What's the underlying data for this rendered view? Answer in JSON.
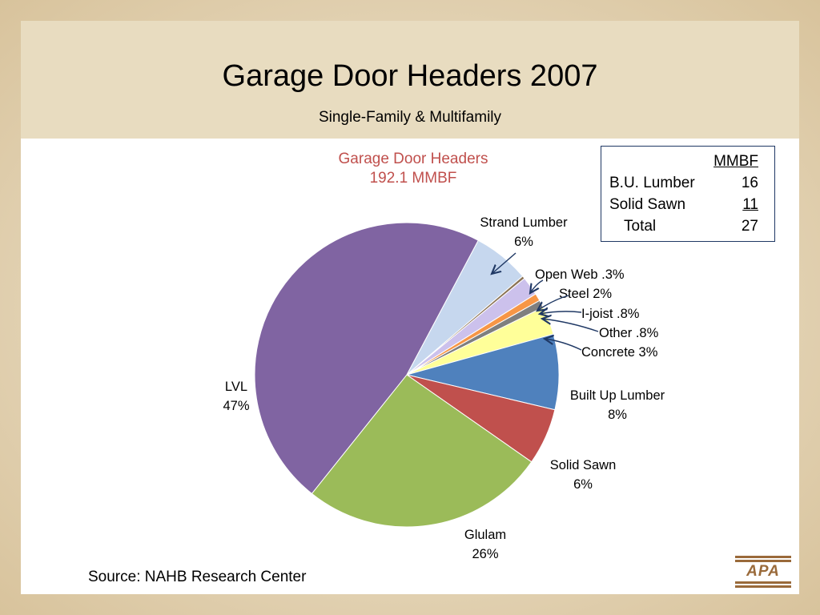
{
  "slide": {
    "title": "Garage Door Headers 2007",
    "subtitle": "Single-Family & Multifamily",
    "source": "Source:  NAHB Research Center",
    "logo_text": "APA"
  },
  "mmbf_table": {
    "header": "MMBF",
    "rows": [
      {
        "label": "B.U. Lumber",
        "value": "16"
      },
      {
        "label": "Solid Sawn",
        "value": "11"
      },
      {
        "label": "Total",
        "value": "27"
      }
    ]
  },
  "chart_data": {
    "type": "pie",
    "title": "Garage Door Headers",
    "subtitle": "192.1 MMBF",
    "slices": [
      {
        "name": "Strand Lumber",
        "label": "Strand Lumber",
        "pct_label": "6%",
        "value": 6,
        "color": "#c6d7ee"
      },
      {
        "name": "Open Web",
        "label": "Open Web .3%",
        "value": 0.3,
        "color": "#8b7355"
      },
      {
        "name": "Steel",
        "label": "Steel 2%",
        "value": 2,
        "color": "#ccc1ec"
      },
      {
        "name": "I-joist",
        "label": "I-joist .8%",
        "value": 0.8,
        "color": "#f79646"
      },
      {
        "name": "Other",
        "label": "Other .8%",
        "value": 0.8,
        "color": "#7f7f7f"
      },
      {
        "name": "Concrete",
        "label": "Concrete 3%",
        "value": 3,
        "color": "#ffff99"
      },
      {
        "name": "Built Up Lumber",
        "label": "Built Up Lumber",
        "pct_label": "8%",
        "value": 8,
        "color": "#4f81bd"
      },
      {
        "name": "Solid Sawn",
        "label": "Solid Sawn",
        "pct_label": "6%",
        "value": 6,
        "color": "#c0504d"
      },
      {
        "name": "Glulam",
        "label": "Glulam",
        "pct_label": "26%",
        "value": 26,
        "color": "#9bbb59"
      },
      {
        "name": "LVL",
        "label": "LVL",
        "pct_label": "47%",
        "value": 47,
        "color": "#8064a2"
      }
    ]
  }
}
